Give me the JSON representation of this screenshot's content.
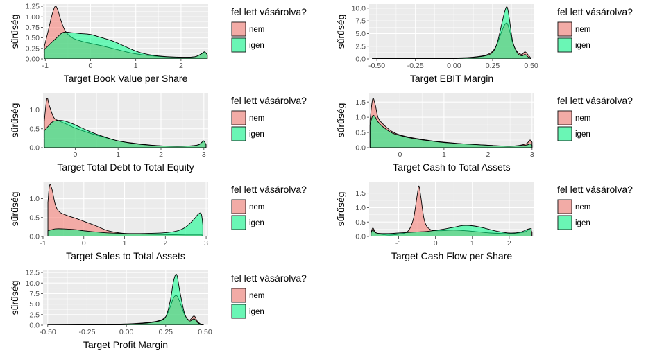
{
  "colors": {
    "nem": "#F8766D",
    "igen": "#00FF88",
    "panel": "#EBEBEB",
    "grid": "#FFFFFF"
  },
  "legend": {
    "title": "fel lett vásárolva?",
    "items": [
      "nem",
      "igen"
    ]
  },
  "chart_data": [
    {
      "type": "area",
      "xlabel": "Target Book Value per Share",
      "ylabel": "sűrűség",
      "xlim": [
        -1.05,
        2.6
      ],
      "ylim": [
        0,
        1.3
      ],
      "xticks": [
        -1,
        0,
        1,
        2
      ],
      "xtick_labels": [
        "-1",
        "0",
        "1",
        "2"
      ],
      "yticks": [
        0,
        0.25,
        0.5,
        0.75,
        1.0,
        1.25
      ],
      "ytick_labels": [
        "0.00",
        "0.25",
        "0.50",
        "0.75",
        "1.00",
        "1.25"
      ],
      "series": [
        {
          "name": "nem",
          "x": [
            -1.02,
            -0.95,
            -0.85,
            -0.78,
            -0.72,
            -0.65,
            -0.55,
            -0.4,
            -0.2,
            0,
            0.3,
            0.6,
            1.0,
            1.5,
            2.0,
            2.3,
            2.45,
            2.52,
            2.58
          ],
          "y": [
            0.3,
            0.6,
            1.05,
            1.25,
            1.15,
            0.9,
            0.65,
            0.5,
            0.42,
            0.37,
            0.3,
            0.22,
            0.12,
            0.06,
            0.04,
            0.05,
            0.12,
            0.16,
            0.1
          ]
        },
        {
          "name": "igen",
          "x": [
            -1.02,
            -0.9,
            -0.75,
            -0.6,
            -0.4,
            -0.2,
            0,
            0.2,
            0.5,
            0.8,
            1.1,
            1.5,
            2.0,
            2.3,
            2.45,
            2.52,
            2.58
          ],
          "y": [
            0.22,
            0.35,
            0.5,
            0.63,
            0.62,
            0.6,
            0.58,
            0.52,
            0.42,
            0.28,
            0.15,
            0.07,
            0.04,
            0.05,
            0.12,
            0.17,
            0.1
          ]
        }
      ]
    },
    {
      "type": "area",
      "xlabel": "Target EBIT Margin",
      "ylabel": "sűrűség",
      "xlim": [
        -0.55,
        0.52
      ],
      "ylim": [
        0,
        10.8
      ],
      "xticks": [
        -0.5,
        -0.25,
        0,
        0.25,
        0.5
      ],
      "xtick_labels": [
        "-0.50",
        "-0.25",
        "0.00",
        "0.25",
        "0.50"
      ],
      "yticks": [
        0,
        2.5,
        5.0,
        7.5,
        10.0
      ],
      "ytick_labels": [
        "0.0",
        "2.5",
        "5.0",
        "7.5",
        "10.0"
      ],
      "series": [
        {
          "name": "nem",
          "x": [
            -0.53,
            -0.4,
            -0.2,
            0,
            0.1,
            0.2,
            0.25,
            0.28,
            0.31,
            0.33,
            0.345,
            0.36,
            0.38,
            0.41,
            0.44,
            0.46,
            0.48,
            0.5
          ],
          "y": [
            0.05,
            0.1,
            0.15,
            0.2,
            0.3,
            0.7,
            1.5,
            3.0,
            5.5,
            6.8,
            7.0,
            5.6,
            3.2,
            1.4,
            0.9,
            1.4,
            0.8,
            0.1
          ]
        },
        {
          "name": "igen",
          "x": [
            -0.53,
            -0.4,
            -0.2,
            0,
            0.1,
            0.2,
            0.25,
            0.28,
            0.31,
            0.33,
            0.345,
            0.36,
            0.38,
            0.41,
            0.44,
            0.46,
            0.48,
            0.5
          ],
          "y": [
            0.02,
            0.05,
            0.08,
            0.12,
            0.25,
            0.6,
            1.3,
            3.2,
            7.0,
            9.5,
            10.2,
            7.6,
            3.5,
            1.2,
            0.6,
            0.9,
            0.4,
            0.05
          ]
        }
      ]
    },
    {
      "type": "area",
      "xlabel": "Target Total Debt to Total Equity",
      "ylabel": "sűrűség",
      "xlim": [
        -0.75,
        3.1
      ],
      "ylim": [
        0,
        1.45
      ],
      "xticks": [
        0,
        1,
        2,
        3
      ],
      "xtick_labels": [
        "0",
        "1",
        "2",
        "3"
      ],
      "yticks": [
        0,
        0.5,
        1.0
      ],
      "ytick_labels": [
        "0.0",
        "0.5",
        "1.0"
      ],
      "series": [
        {
          "name": "nem",
          "x": [
            -0.72,
            -0.66,
            -0.6,
            -0.5,
            -0.4,
            -0.2,
            0,
            0.3,
            0.6,
            1.0,
            1.5,
            2.0,
            2.5,
            2.85,
            2.95,
            3.0,
            3.05
          ],
          "y": [
            0.7,
            1.3,
            1.1,
            0.8,
            0.72,
            0.62,
            0.52,
            0.4,
            0.3,
            0.18,
            0.1,
            0.05,
            0.04,
            0.07,
            0.14,
            0.17,
            0.08
          ]
        },
        {
          "name": "igen",
          "x": [
            -0.72,
            -0.6,
            -0.5,
            -0.3,
            -0.1,
            0.1,
            0.4,
            0.7,
            1.0,
            1.5,
            2.0,
            2.5,
            2.85,
            2.95,
            3.0,
            3.05
          ],
          "y": [
            0.45,
            0.6,
            0.7,
            0.72,
            0.65,
            0.55,
            0.4,
            0.28,
            0.18,
            0.09,
            0.05,
            0.04,
            0.07,
            0.14,
            0.18,
            0.08
          ]
        }
      ]
    },
    {
      "type": "area",
      "xlabel": "Target Cash to Total Assets",
      "ylabel": "sűrűség",
      "xlim": [
        -0.7,
        3.05
      ],
      "ylim": [
        0,
        1.8
      ],
      "xticks": [
        0,
        1,
        2,
        3
      ],
      "xtick_labels": [
        "0",
        "1",
        "2",
        "3"
      ],
      "yticks": [
        0,
        0.5,
        1.0,
        1.5
      ],
      "ytick_labels": [
        "0.0",
        "0.5",
        "1.0",
        "1.5"
      ],
      "series": [
        {
          "name": "nem",
          "x": [
            -0.68,
            -0.62,
            -0.56,
            -0.5,
            -0.4,
            -0.2,
            0,
            0.3,
            0.7,
            1.0,
            1.5,
            2.0,
            2.5,
            2.85,
            2.95,
            3.0
          ],
          "y": [
            0.9,
            1.6,
            1.4,
            1.0,
            0.8,
            0.55,
            0.42,
            0.32,
            0.23,
            0.18,
            0.12,
            0.08,
            0.05,
            0.12,
            0.25,
            0.18
          ]
        },
        {
          "name": "igen",
          "x": [
            -0.68,
            -0.62,
            -0.56,
            -0.5,
            -0.4,
            -0.2,
            0,
            0.3,
            0.7,
            1.0,
            1.5,
            2.0,
            2.5,
            2.85,
            2.95,
            3.0
          ],
          "y": [
            0.75,
            1.05,
            1.0,
            0.85,
            0.7,
            0.5,
            0.4,
            0.3,
            0.22,
            0.17,
            0.12,
            0.08,
            0.05,
            0.08,
            0.12,
            0.08
          ]
        }
      ]
    },
    {
      "type": "area",
      "xlabel": "Target Sales to Total Assets",
      "ylabel": "sűrűség",
      "xlim": [
        -1.0,
        3.05
      ],
      "ylim": [
        0,
        1.45
      ],
      "xticks": [
        -1,
        0,
        1,
        2,
        3
      ],
      "xtick_labels": [
        "-1",
        "0",
        "1",
        "2",
        "3"
      ],
      "yticks": [
        0,
        0.5,
        1.0
      ],
      "ytick_labels": [
        "0.0",
        "0.5",
        "1.0"
      ],
      "series": [
        {
          "name": "nem",
          "x": [
            -0.88,
            -0.84,
            -0.78,
            -0.7,
            -0.6,
            -0.4,
            -0.2,
            0,
            0.3,
            0.6,
            1.0,
            1.5,
            2.0,
            2.5,
            2.9
          ],
          "y": [
            0.9,
            1.35,
            1.25,
            0.85,
            0.65,
            0.55,
            0.48,
            0.4,
            0.28,
            0.15,
            0.08,
            0.06,
            0.05,
            0.04,
            0.04
          ]
        },
        {
          "name": "igen",
          "x": [
            -0.88,
            -0.7,
            -0.5,
            -0.2,
            0,
            0.5,
            1.0,
            1.5,
            2.0,
            2.3,
            2.5,
            2.7,
            2.8,
            2.88,
            2.92
          ],
          "y": [
            0.15,
            0.2,
            0.2,
            0.18,
            0.15,
            0.1,
            0.08,
            0.08,
            0.1,
            0.15,
            0.25,
            0.45,
            0.58,
            0.6,
            0.3
          ]
        }
      ]
    },
    {
      "type": "area",
      "xlabel": "Target Cash Flow per Share",
      "ylabel": "sűrűség",
      "xlim": [
        -1.8,
        2.68
      ],
      "ylim": [
        0,
        1.9
      ],
      "xticks": [
        -1,
        0,
        1,
        2
      ],
      "xtick_labels": [
        "-1",
        "0",
        "1",
        "2"
      ],
      "yticks": [
        0,
        0.5,
        1.0,
        1.5
      ],
      "ytick_labels": [
        "0.0",
        "0.5",
        "1.0",
        "1.5"
      ],
      "series": [
        {
          "name": "nem",
          "x": [
            -1.75,
            -1.7,
            -1.6,
            -1.3,
            -1.0,
            -0.75,
            -0.6,
            -0.5,
            -0.45,
            -0.4,
            -0.3,
            -0.15,
            0.1,
            0.5,
            1.0,
            1.5,
            2.0,
            2.4,
            2.55,
            2.62
          ],
          "y": [
            0.1,
            0.3,
            0.12,
            0.05,
            0.08,
            0.18,
            0.6,
            1.4,
            1.75,
            1.4,
            0.55,
            0.25,
            0.2,
            0.22,
            0.18,
            0.12,
            0.1,
            0.15,
            0.25,
            0.15
          ]
        },
        {
          "name": "igen",
          "x": [
            -1.75,
            -1.7,
            -1.6,
            -1.3,
            -1.0,
            -0.6,
            -0.2,
            0.2,
            0.5,
            0.75,
            1.0,
            1.3,
            1.6,
            2.0,
            2.3,
            2.5,
            2.6
          ],
          "y": [
            0.12,
            0.22,
            0.12,
            0.1,
            0.12,
            0.15,
            0.18,
            0.25,
            0.32,
            0.38,
            0.37,
            0.3,
            0.2,
            0.12,
            0.15,
            0.25,
            0.28
          ]
        }
      ]
    },
    {
      "type": "area",
      "xlabel": "Target Profit Margin",
      "ylabel": "sűrűség",
      "xlim": [
        -0.53,
        0.52
      ],
      "ylim": [
        0,
        13
      ],
      "xticks": [
        -0.5,
        -0.25,
        0,
        0.25,
        0.5
      ],
      "xtick_labels": [
        "-0.50",
        "-0.25",
        "0.00",
        "0.25",
        "0.50"
      ],
      "yticks": [
        0,
        2.5,
        5.0,
        7.5,
        10.0,
        12.5
      ],
      "ytick_labels": [
        "0.0",
        "2.5",
        "5.0",
        "7.5",
        "10.0",
        "12.5"
      ],
      "series": [
        {
          "name": "nem",
          "x": [
            -0.5,
            -0.3,
            -0.1,
            0,
            0.1,
            0.2,
            0.25,
            0.28,
            0.3,
            0.32,
            0.34,
            0.37,
            0.4,
            0.43,
            0.45,
            0.47,
            0.49
          ],
          "y": [
            0.05,
            0.1,
            0.2,
            0.3,
            0.5,
            1.0,
            2.0,
            4.5,
            6.5,
            7.0,
            5.5,
            2.5,
            1.2,
            2.2,
            1.0,
            0.3,
            0.05
          ]
        },
        {
          "name": "igen",
          "x": [
            -0.5,
            -0.3,
            -0.1,
            0,
            0.1,
            0.2,
            0.25,
            0.28,
            0.3,
            0.32,
            0.34,
            0.37,
            0.4,
            0.43,
            0.45,
            0.47,
            0.49
          ],
          "y": [
            0.02,
            0.05,
            0.1,
            0.2,
            0.4,
            0.9,
            2.0,
            6.0,
            10.5,
            12.0,
            8.0,
            2.8,
            1.0,
            1.5,
            0.7,
            0.2,
            0.02
          ]
        }
      ]
    }
  ]
}
